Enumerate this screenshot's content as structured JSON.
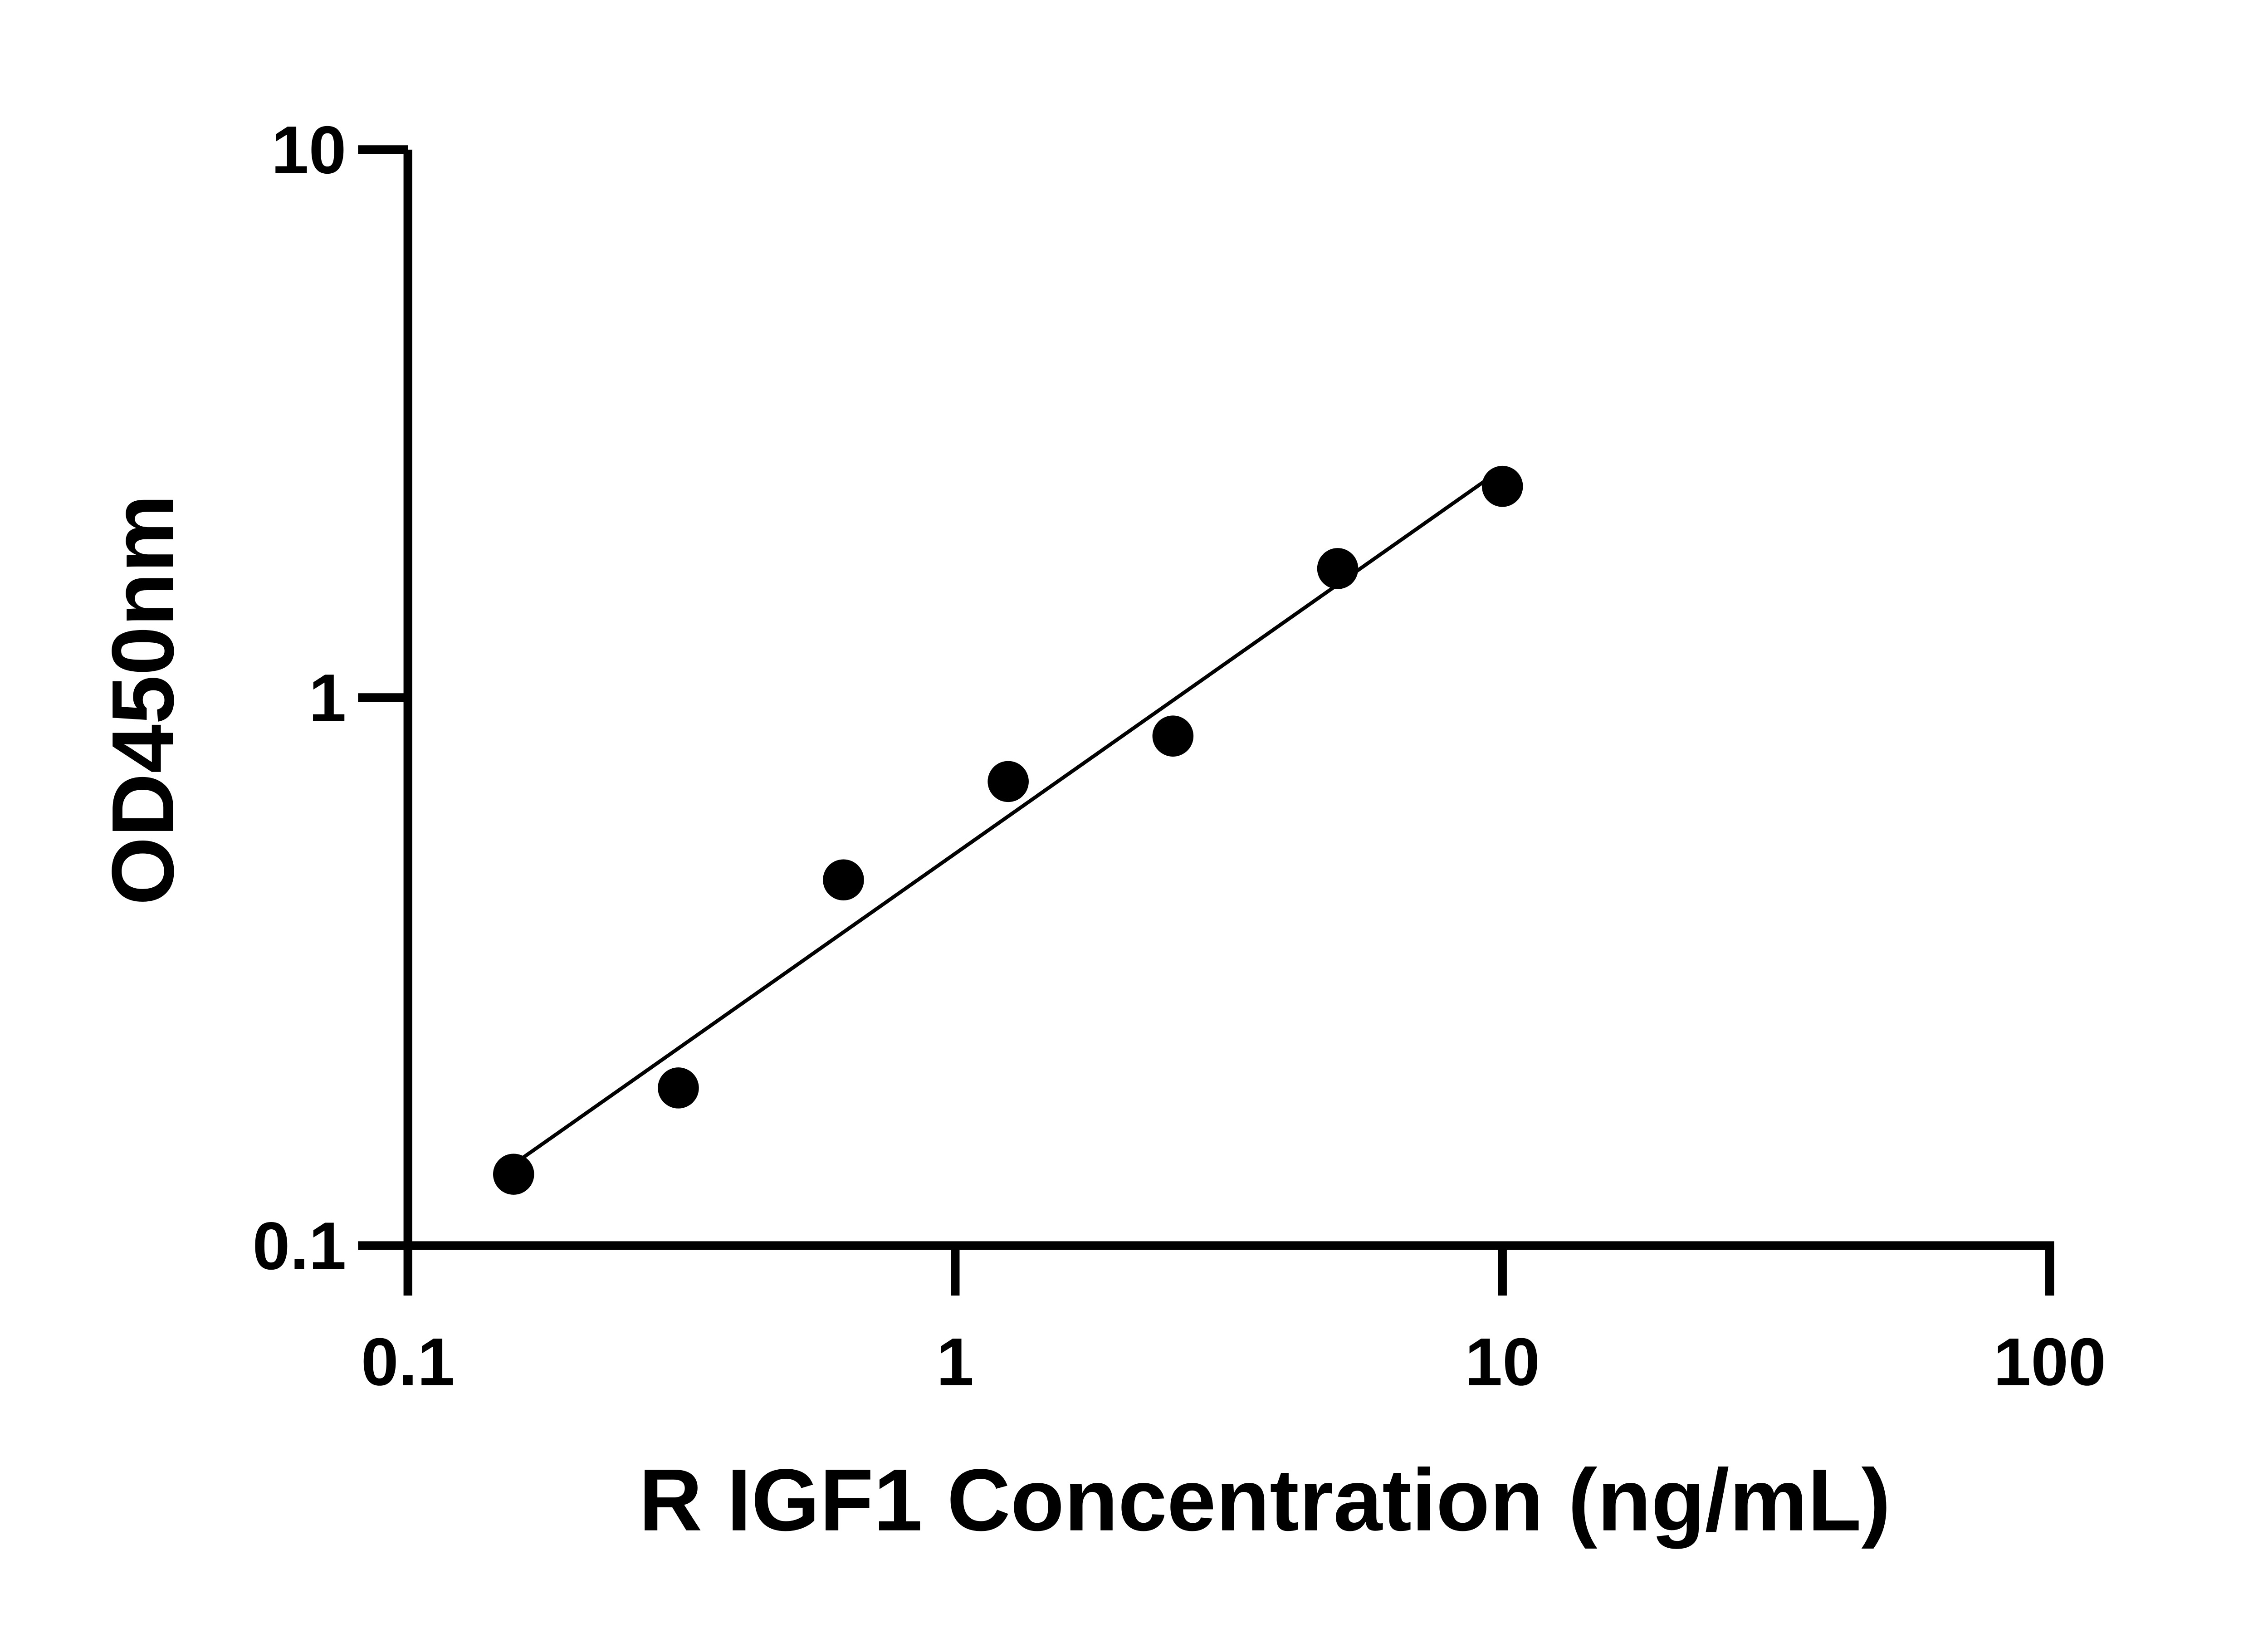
{
  "chart_data": {
    "type": "scatter",
    "title": "",
    "xlabel": "R IGF1 Concentration (ng/mL)",
    "ylabel": "OD450nm",
    "x_scale": "log",
    "y_scale": "log",
    "xlim": [
      0.1,
      100
    ],
    "ylim": [
      0.1,
      10
    ],
    "x_ticks": [
      "0.1",
      "1",
      "10",
      "100"
    ],
    "y_ticks": [
      "0.1",
      "1",
      "10"
    ],
    "grid": false,
    "fit_line": "log-log linear fit",
    "colors": {
      "points": "#000000",
      "line": "#000000",
      "axes": "#000000"
    },
    "series": [
      {
        "x": [
          0.156,
          0.312,
          0.625,
          1.25,
          2.5,
          5,
          10
        ],
        "y": [
          0.135,
          0.194,
          0.465,
          0.703,
          0.851,
          1.72,
          2.43
        ]
      }
    ]
  }
}
